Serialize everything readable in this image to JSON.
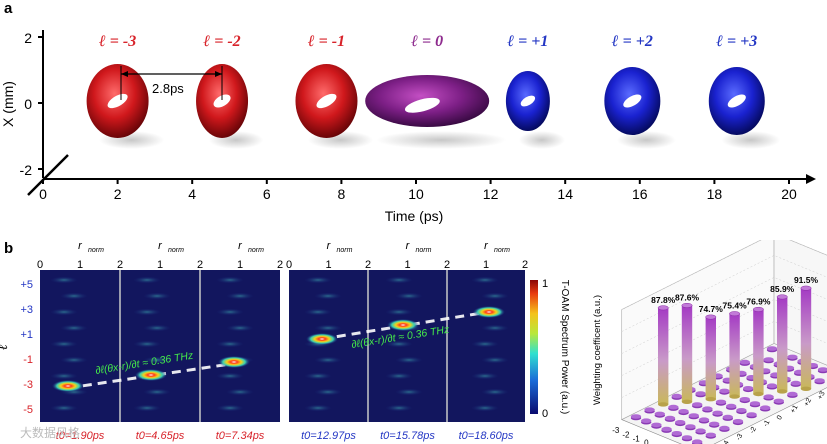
{
  "panel_a": {
    "label": "a",
    "ylabel": "X (mm)",
    "xlabel": "Time (ps)",
    "yticks": [
      "2",
      "0",
      "-2"
    ],
    "xticks": [
      "0",
      "2",
      "4",
      "6",
      "8",
      "10",
      "12",
      "14",
      "16",
      "18",
      "20"
    ],
    "spacing_annotation": "2.8ps",
    "modes": [
      {
        "label": "ℓ = -3",
        "color": "#d8232a",
        "time_ps": 2
      },
      {
        "label": "ℓ = -2",
        "color": "#d8232a",
        "time_ps": 4.8
      },
      {
        "label": "ℓ = -1",
        "color": "#d8232a",
        "time_ps": 7.6
      },
      {
        "label": "ℓ = 0",
        "color": "#8e2b8e",
        "time_ps": 10.3
      },
      {
        "label": "ℓ = +1",
        "color": "#2437c4",
        "time_ps": 13
      },
      {
        "label": "ℓ = +2",
        "color": "#2437c4",
        "time_ps": 15.8
      },
      {
        "label": "ℓ = +3",
        "color": "#2437c4",
        "time_ps": 18.6
      }
    ]
  },
  "panel_b": {
    "label": "b",
    "ylabel": "ℓ",
    "rnorm_label": "r",
    "rnorm_sub": "norm",
    "rnorm_ticks": [
      "0",
      "1",
      "2"
    ],
    "ell_ticks": [
      "+5",
      "+3",
      "+1",
      "-1",
      "-3",
      "-5"
    ],
    "ell_tick_colors": [
      "#2437c4",
      "#2437c4",
      "#2437c4",
      "#d8232a",
      "#d8232a",
      "#d8232a"
    ],
    "slope_text_left": "∂ℓ(θx-r)/∂t ≈ 0.36 THz",
    "slope_text_right": "∂ℓ(θx-r)/∂t ≈ 0.36 THz",
    "frames": [
      {
        "t0": "t0=1.90ps",
        "color": "#d8232a"
      },
      {
        "t0": "t0=4.65ps",
        "color": "#d8232a"
      },
      {
        "t0": "t0=7.34ps",
        "color": "#d8232a"
      },
      {
        "t0": "t0=12.97ps",
        "color": "#2437c4"
      },
      {
        "t0": "t0=15.78ps",
        "color": "#2437c4"
      },
      {
        "t0": "t0=18.60ps",
        "color": "#2437c4"
      }
    ],
    "colorbar": {
      "max": "1",
      "min": "0",
      "label": "T-OAM Spectrum Power (a.u.)"
    }
  },
  "chart_data": {
    "type": "bar",
    "title": "",
    "zlabel": "Weighting coefficent (a.u.)",
    "axis_ticks": [
      "-3",
      "-2",
      "-1",
      "0",
      "1",
      "2",
      "3"
    ],
    "categories": [
      "-3",
      "-2",
      "-1",
      "0",
      "+1",
      "+2",
      "+3"
    ],
    "values": [
      87.8,
      87.6,
      74.7,
      75.4,
      76.9,
      85.9,
      91.5
    ],
    "value_labels": [
      "87.8%",
      "87.6%",
      "74.7%",
      "75.4%",
      "76.9%",
      "85.9%",
      "91.5%"
    ],
    "xlabel": "ℓ",
    "ylabel": "ℓ",
    "back_axis_ticks": [
      "-5",
      "-4",
      "-3",
      "-2",
      "-1",
      "0",
      "+1",
      "+2",
      "+3",
      "+4",
      "+5"
    ],
    "right_axis_ticks": [
      "5",
      "4",
      "3",
      "2",
      "1",
      "0",
      "-1",
      "-2",
      "-3",
      "-4",
      "-5"
    ]
  },
  "watermark": "大数据风格"
}
